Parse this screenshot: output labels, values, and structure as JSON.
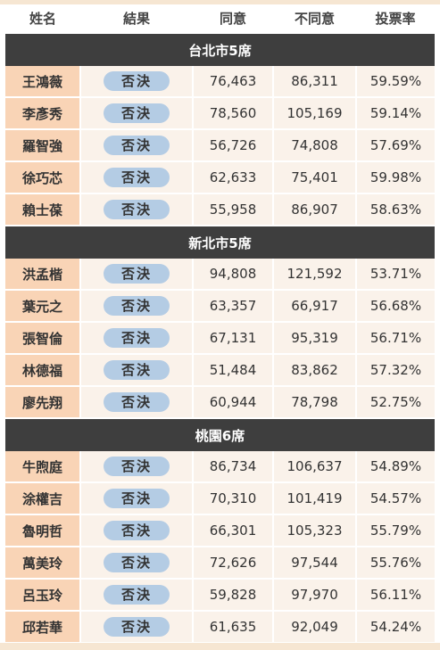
{
  "headers": [
    "姓名",
    "結果",
    "同意",
    "不同意",
    "投票率"
  ],
  "sections": [
    {
      "title": "台北市5席",
      "rows": [
        {
          "name": "王鴻薇",
          "result": "否決",
          "agree": "76,463",
          "disagree": "86,311",
          "turnout": "59.59%"
        },
        {
          "name": "李彥秀",
          "result": "否決",
          "agree": "78,560",
          "disagree": "105,169",
          "turnout": "59.14%"
        },
        {
          "name": "羅智強",
          "result": "否決",
          "agree": "56,726",
          "disagree": "74,808",
          "turnout": "57.69%"
        },
        {
          "name": "徐巧芯",
          "result": "否決",
          "agree": "62,633",
          "disagree": "75,401",
          "turnout": "59.98%"
        },
        {
          "name": "賴士葆",
          "result": "否決",
          "agree": "55,958",
          "disagree": "86,907",
          "turnout": "58.63%"
        }
      ]
    },
    {
      "title": "新北市5席",
      "rows": [
        {
          "name": "洪孟楷",
          "result": "否決",
          "agree": "94,808",
          "disagree": "121,592",
          "turnout": "53.71%"
        },
        {
          "name": "葉元之",
          "result": "否決",
          "agree": "63,357",
          "disagree": "66,917",
          "turnout": "56.68%"
        },
        {
          "name": "張智倫",
          "result": "否決",
          "agree": "67,131",
          "disagree": "95,319",
          "turnout": "56.71%"
        },
        {
          "name": "林德福",
          "result": "否決",
          "agree": "51,484",
          "disagree": "83,862",
          "turnout": "57.32%"
        },
        {
          "name": "廖先翔",
          "result": "否決",
          "agree": "60,944",
          "disagree": "78,798",
          "turnout": "52.75%"
        }
      ]
    },
    {
      "title": "桃園6席",
      "rows": [
        {
          "name": "牛煦庭",
          "result": "否決",
          "agree": "86,734",
          "disagree": "106,637",
          "turnout": "54.89%"
        },
        {
          "name": "涂權吉",
          "result": "否決",
          "agree": "70,310",
          "disagree": "101,419",
          "turnout": "54.57%"
        },
        {
          "name": "魯明哲",
          "result": "否決",
          "agree": "66,301",
          "disagree": "105,323",
          "turnout": "55.79%"
        },
        {
          "name": "萬美玲",
          "result": "否決",
          "agree": "72,626",
          "disagree": "97,544",
          "turnout": "55.76%"
        },
        {
          "name": "呂玉玲",
          "result": "否決",
          "agree": "59,828",
          "disagree": "97,970",
          "turnout": "56.11%"
        },
        {
          "name": "邱若華",
          "result": "否決",
          "agree": "61,635",
          "disagree": "92,049",
          "turnout": "54.24%"
        }
      ]
    }
  ],
  "colors": {
    "section_bg": "#3e3e3e",
    "name_bg": "#f9d4b6",
    "cell_bg": "#faf2ea",
    "pill_bg": "#b4cce4"
  }
}
